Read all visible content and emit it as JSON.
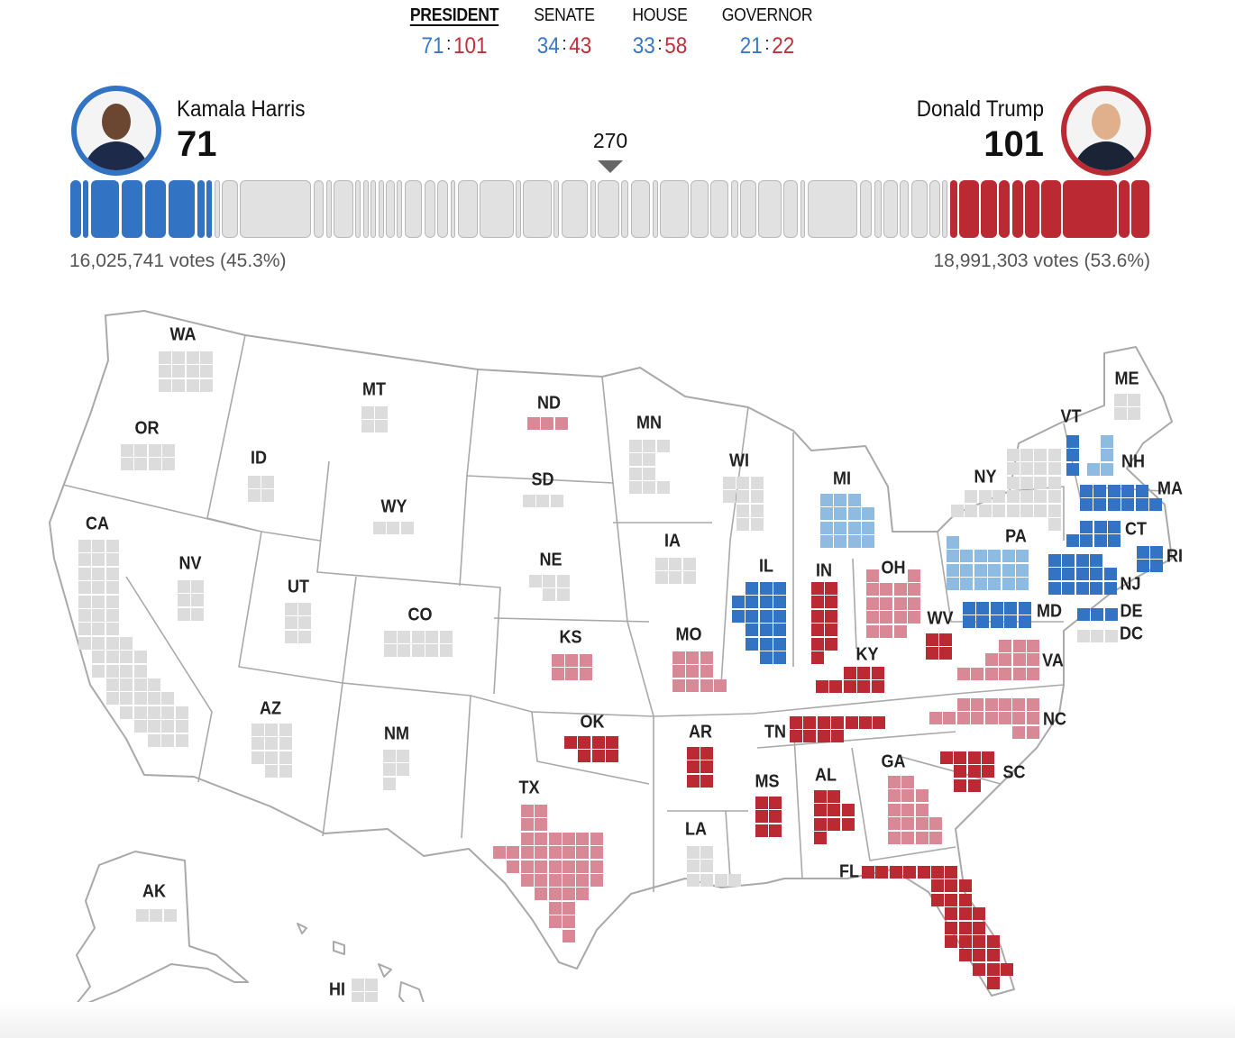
{
  "tabs": [
    {
      "label": "PRESIDENT",
      "dem": "71",
      "rep": "101",
      "active": true
    },
    {
      "label": "SENATE",
      "dem": "34",
      "rep": "43",
      "active": false
    },
    {
      "label": "HOUSE",
      "dem": "33",
      "rep": "58",
      "active": false
    },
    {
      "label": "GOVERNOR",
      "dem": "21",
      "rep": "22",
      "active": false
    }
  ],
  "candidates": {
    "dem": {
      "name": "Kamala Harris",
      "ev": "71",
      "votes": "16,025,741 votes (45.3%)",
      "color": "#3373c4"
    },
    "rep": {
      "name": "Donald Trump",
      "ev": "101",
      "votes": "18,991,303 votes (53.6%)",
      "color": "#bb2a33"
    }
  },
  "threshold": "270",
  "bar": {
    "dem_segments": [
      6,
      3,
      16,
      12,
      12,
      15,
      4,
      3
    ],
    "none_segments": [
      3,
      9,
      40,
      6,
      3,
      11,
      3,
      3,
      3,
      3,
      5,
      3,
      10,
      6,
      6,
      3,
      11,
      19,
      3,
      16,
      3,
      15,
      3,
      12,
      4,
      11,
      3,
      16,
      10,
      10,
      4,
      9,
      13,
      8,
      3,
      28,
      7,
      4,
      8,
      5,
      9,
      6,
      3
    ],
    "rep_segments": [
      4,
      11,
      9,
      6,
      6,
      8,
      11,
      30,
      6,
      10
    ]
  },
  "colors": {
    "dem": "#3373c4",
    "dem-lean": "#8ebbe2",
    "rep": "#bb2a33",
    "rep-lean": "#d98896",
    "none": "#dcdcdc"
  },
  "map": {
    "states": [
      {
        "code": "WA",
        "ev": 12,
        "status": "none"
      },
      {
        "code": "OR",
        "ev": 8,
        "status": "none"
      },
      {
        "code": "CA",
        "ev": 54,
        "status": "none"
      },
      {
        "code": "NV",
        "ev": 6,
        "status": "none"
      },
      {
        "code": "ID",
        "ev": 4,
        "status": "none"
      },
      {
        "code": "MT",
        "ev": 4,
        "status": "none"
      },
      {
        "code": "WY",
        "ev": 3,
        "status": "none"
      },
      {
        "code": "UT",
        "ev": 6,
        "status": "none"
      },
      {
        "code": "CO",
        "ev": 10,
        "status": "none"
      },
      {
        "code": "AZ",
        "ev": 11,
        "status": "none"
      },
      {
        "code": "NM",
        "ev": 5,
        "status": "none"
      },
      {
        "code": "ND",
        "ev": 3,
        "status": "rep-lean"
      },
      {
        "code": "SD",
        "ev": 3,
        "status": "none"
      },
      {
        "code": "NE",
        "ev": 5,
        "status": "none"
      },
      {
        "code": "KS",
        "ev": 6,
        "status": "rep-lean"
      },
      {
        "code": "OK",
        "ev": 7,
        "status": "rep"
      },
      {
        "code": "TX",
        "ev": 40,
        "status": "rep-lean"
      },
      {
        "code": "MN",
        "ev": 10,
        "status": "none"
      },
      {
        "code": "IA",
        "ev": 6,
        "status": "none"
      },
      {
        "code": "MO",
        "ev": 10,
        "status": "rep-lean"
      },
      {
        "code": "AR",
        "ev": 6,
        "status": "rep"
      },
      {
        "code": "LA",
        "ev": 8,
        "status": "none"
      },
      {
        "code": "WI",
        "ev": 10,
        "status": "none"
      },
      {
        "code": "IL",
        "ev": 19,
        "status": "dem"
      },
      {
        "code": "MS",
        "ev": 6,
        "status": "rep"
      },
      {
        "code": "MI",
        "ev": 15,
        "status": "dem-lean"
      },
      {
        "code": "IN",
        "ev": 11,
        "status": "rep"
      },
      {
        "code": "KY",
        "ev": 8,
        "status": "rep"
      },
      {
        "code": "TN",
        "ev": 11,
        "status": "rep"
      },
      {
        "code": "AL",
        "ev": 9,
        "status": "rep"
      },
      {
        "code": "OH",
        "ev": 17,
        "status": "rep-lean"
      },
      {
        "code": "GA",
        "ev": 16,
        "status": "rep-lean"
      },
      {
        "code": "FL",
        "ev": 30,
        "status": "rep"
      },
      {
        "code": "SC",
        "ev": 9,
        "status": "rep"
      },
      {
        "code": "NC",
        "ev": 16,
        "status": "rep-lean"
      },
      {
        "code": "VA",
        "ev": 13,
        "status": "rep-lean"
      },
      {
        "code": "WV",
        "ev": 4,
        "status": "rep"
      },
      {
        "code": "PA",
        "ev": 19,
        "status": "dem-lean"
      },
      {
        "code": "NY",
        "ev": 28,
        "status": "none"
      },
      {
        "code": "VT",
        "ev": 3,
        "status": "dem"
      },
      {
        "code": "NH",
        "ev": 4,
        "status": "dem-lean"
      },
      {
        "code": "ME",
        "ev": 4,
        "status": "none"
      },
      {
        "code": "MA",
        "ev": 11,
        "status": "dem"
      },
      {
        "code": "CT",
        "ev": 7,
        "status": "dem"
      },
      {
        "code": "RI",
        "ev": 4,
        "status": "dem"
      },
      {
        "code": "NJ",
        "ev": 14,
        "status": "dem"
      },
      {
        "code": "MD",
        "ev": 10,
        "status": "dem"
      },
      {
        "code": "DE",
        "ev": 3,
        "status": "dem"
      },
      {
        "code": "DC",
        "ev": 3,
        "status": "none"
      },
      {
        "code": "AK",
        "ev": 3,
        "status": "none"
      },
      {
        "code": "HI",
        "ev": 4,
        "status": "none"
      }
    ]
  }
}
